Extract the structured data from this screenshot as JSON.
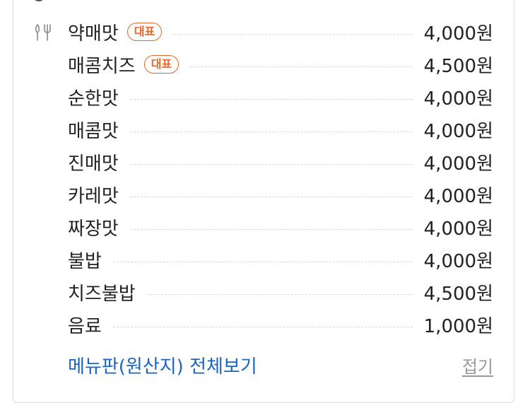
{
  "menu": {
    "badge_label": "대표",
    "items": [
      {
        "name": "약매맛",
        "price": "4,000원",
        "badge": "대표"
      },
      {
        "name": "매콤치즈",
        "price": "4,500원",
        "badge": "대표"
      },
      {
        "name": "순한맛",
        "price": "4,000원"
      },
      {
        "name": "매콤맛",
        "price": "4,000원"
      },
      {
        "name": "진매맛",
        "price": "4,000원"
      },
      {
        "name": "카레맛",
        "price": "4,000원"
      },
      {
        "name": "짜장맛",
        "price": "4,000원"
      },
      {
        "name": "불밥",
        "price": "4,000원"
      },
      {
        "name": "치즈불밥",
        "price": "4,500원"
      },
      {
        "name": "음료",
        "price": "1,000원"
      }
    ]
  },
  "footer": {
    "full_menu_link": "메뉴판(원산지) 전체보기",
    "collapse_link": "접기"
  },
  "icons": {
    "menu": "fork-knife-icon"
  },
  "colors": {
    "badge": "#e8682c",
    "link": "#1a64c8",
    "muted": "#999999"
  }
}
